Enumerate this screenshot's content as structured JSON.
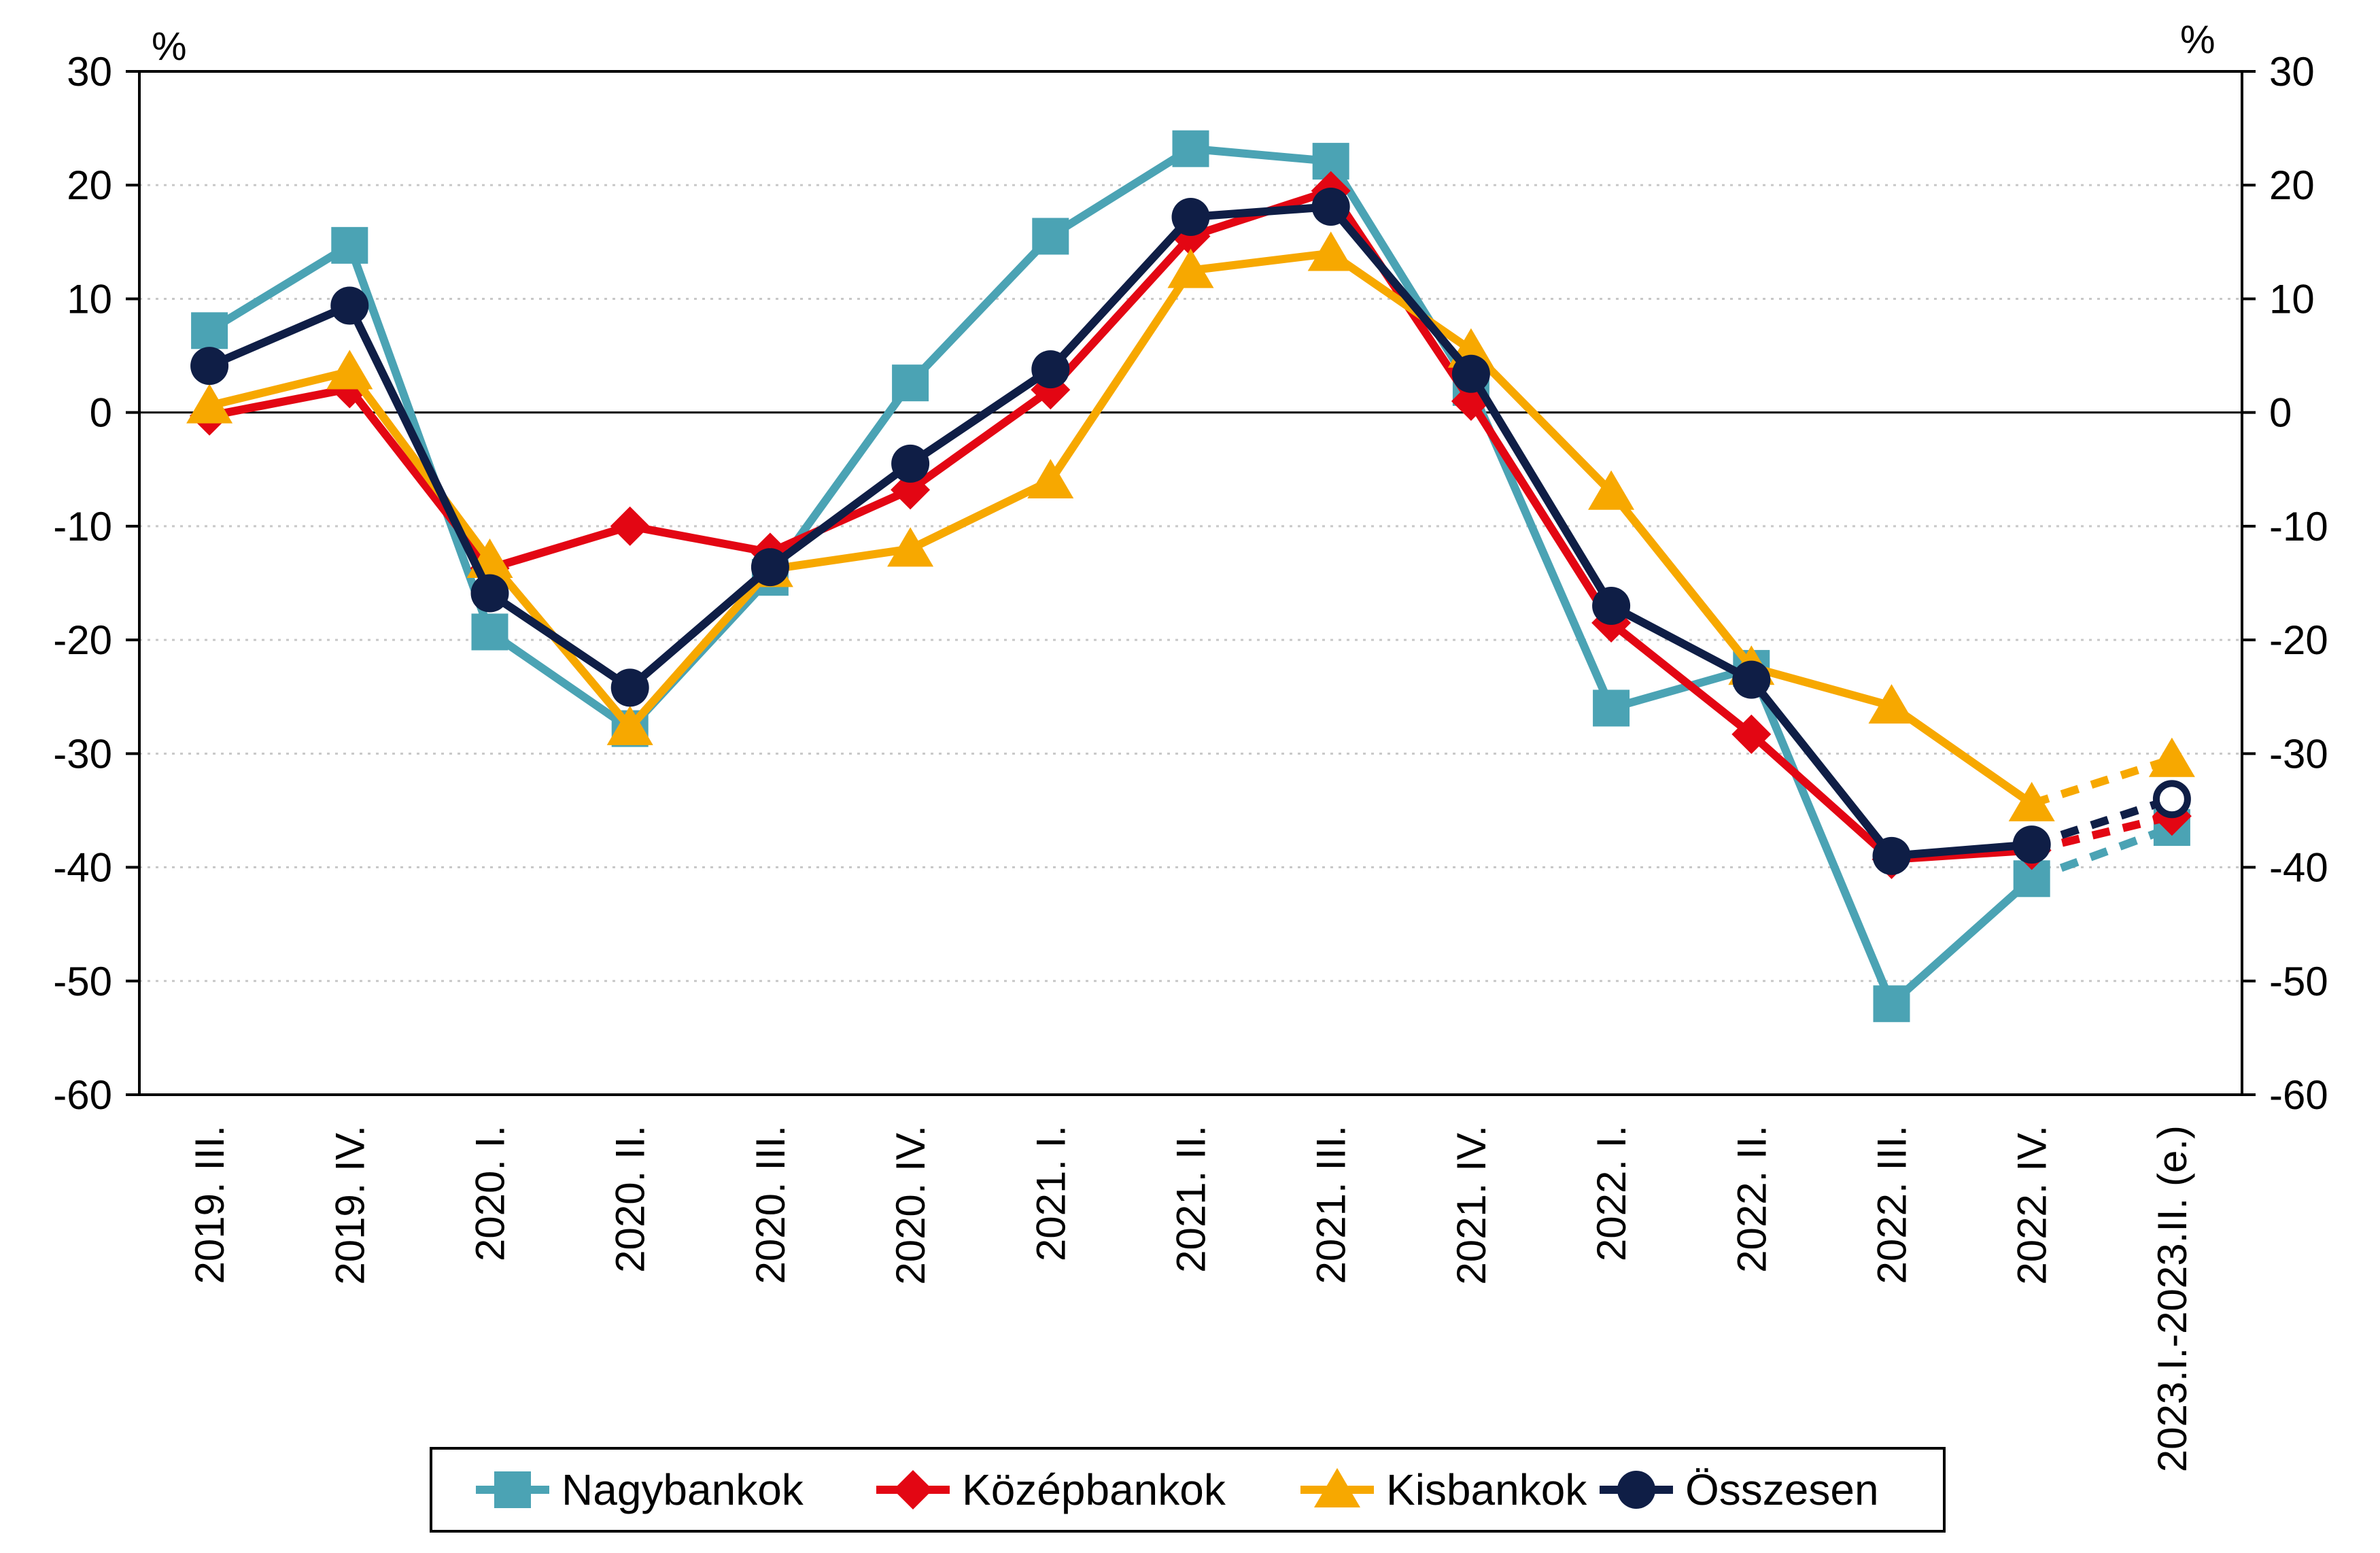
{
  "chart_data": {
    "type": "line",
    "title": "",
    "xlabel": "",
    "ylabel": "%",
    "ylabel_right": "%",
    "ylim": [
      -60,
      30
    ],
    "yticks": [
      30,
      20,
      10,
      0,
      -10,
      -20,
      -30,
      -40,
      -50,
      -60
    ],
    "grid": "horizontal dotted",
    "legend_position": "bottom",
    "categories": [
      "2019. III.",
      "2019. IV.",
      "2020. I.",
      "2020. II.",
      "2020. III.",
      "2020. IV.",
      "2021. I.",
      "2021. II.",
      "2021. III.",
      "2021. IV.",
      "2022. I.",
      "2022. II.",
      "2022. III.",
      "2022. IV.",
      "2023.I.-2023.II. (e.)"
    ],
    "forecast_from_index": 13,
    "series": [
      {
        "name": "Nagybankok",
        "color": "#4BA3B4",
        "marker": "square",
        "values": [
          7.2,
          14.7,
          -19.3,
          -27.8,
          -14.5,
          2.6,
          15.5,
          23.2,
          22.1,
          2.2,
          -26,
          -22.5,
          -52,
          -41,
          -36.5
        ]
      },
      {
        "name": "Középbankok",
        "color": "#E30613",
        "marker": "diamond",
        "values": [
          -0.3,
          2.1,
          -13.7,
          -10,
          -12.3,
          -6.8,
          2,
          15.5,
          19.5,
          1,
          -18.5,
          -28.3,
          -39.3,
          -38.5,
          -35.5
        ]
      },
      {
        "name": "Kisbankok",
        "color": "#F7A800",
        "marker": "triangle",
        "values": [
          0.6,
          3.6,
          -13,
          -27.7,
          -13.8,
          -12,
          -6,
          12.5,
          14,
          5.5,
          -7,
          -22.4,
          -25.8,
          -34.4,
          -30.5
        ]
      },
      {
        "name": "Összesen",
        "color": "#0F1E46",
        "marker": "circle",
        "values": [
          4.1,
          9.4,
          -15.9,
          -24.2,
          -13.6,
          -4.5,
          3.8,
          17.2,
          18.1,
          3.4,
          -17,
          -23.5,
          -39,
          -38,
          -34
        ]
      }
    ]
  }
}
